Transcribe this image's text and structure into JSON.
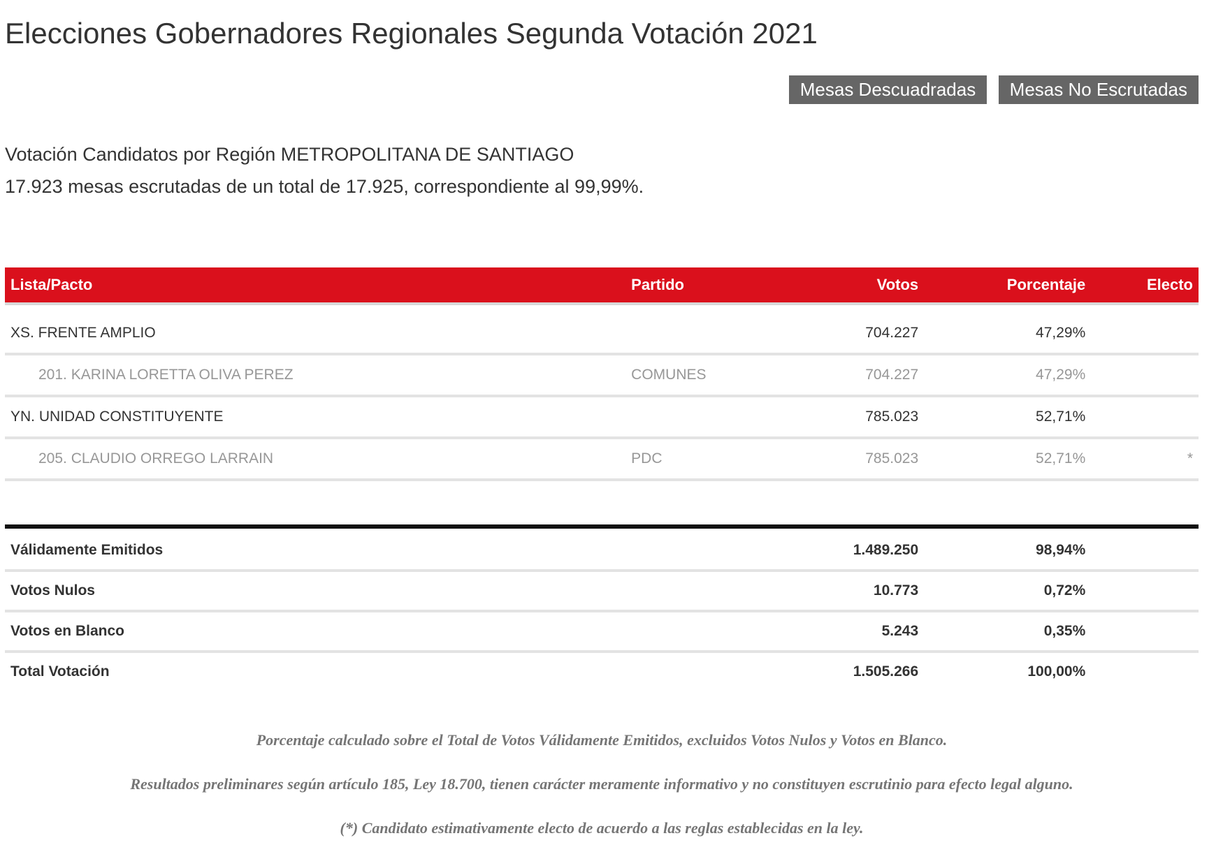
{
  "page_title": "Elecciones Gobernadores Regionales Segunda Votación 2021",
  "buttons": {
    "mesas_descuadradas": "Mesas Descuadradas",
    "mesas_no_escrutadas": "Mesas No Escrutadas"
  },
  "region_line": "Votación Candidatos por Región METROPOLITANA DE SANTIAGO",
  "mesas_line": "17.923 mesas escrutadas de un total de 17.925, correspondiente al 99,99%.",
  "table": {
    "headers": [
      "Lista/Pacto",
      "Partido",
      "Votos",
      "Porcentaje",
      "Electo"
    ],
    "rows": [
      {
        "type": "list",
        "lista": "XS. FRENTE AMPLIO",
        "partido": "",
        "votos": "704.227",
        "porcentaje": "47,29%",
        "electo": ""
      },
      {
        "type": "candidate",
        "lista": "201. KARINA LORETTA OLIVA PEREZ",
        "partido": "COMUNES",
        "votos": "704.227",
        "porcentaje": "47,29%",
        "electo": ""
      },
      {
        "type": "list",
        "lista": "YN. UNIDAD CONSTITUYENTE",
        "partido": "",
        "votos": "785.023",
        "porcentaje": "52,71%",
        "electo": ""
      },
      {
        "type": "candidate",
        "lista": "205. CLAUDIO ORREGO LARRAIN",
        "partido": "PDC",
        "votos": "785.023",
        "porcentaje": "52,71%",
        "electo": "*"
      }
    ],
    "totals": [
      {
        "label": "Válidamente Emitidos",
        "votos": "1.489.250",
        "porcentaje": "98,94%"
      },
      {
        "label": "Votos Nulos",
        "votos": "10.773",
        "porcentaje": "0,72%"
      },
      {
        "label": "Votos en Blanco",
        "votos": "5.243",
        "porcentaje": "0,35%"
      },
      {
        "label": "Total Votación",
        "votos": "1.505.266",
        "porcentaje": "100,00%"
      }
    ]
  },
  "footnotes": [
    "Porcentaje calculado sobre el Total de Votos Válidamente Emitidos, excluidos Votos Nulos y Votos en Blanco.",
    "Resultados preliminares según artículo 185, Ley 18.700, tienen carácter meramente informativo y no constituyen escrutinio para efecto legal alguno.",
    "(*) Candidato estimativamente electo de acuerdo a las reglas establecidas en la ley."
  ],
  "colors": {
    "header_red": "#da101c",
    "button_gray": "#666666",
    "candidate_gray": "#979797",
    "text_dark": "#333333",
    "footnote_gray": "#757575"
  }
}
